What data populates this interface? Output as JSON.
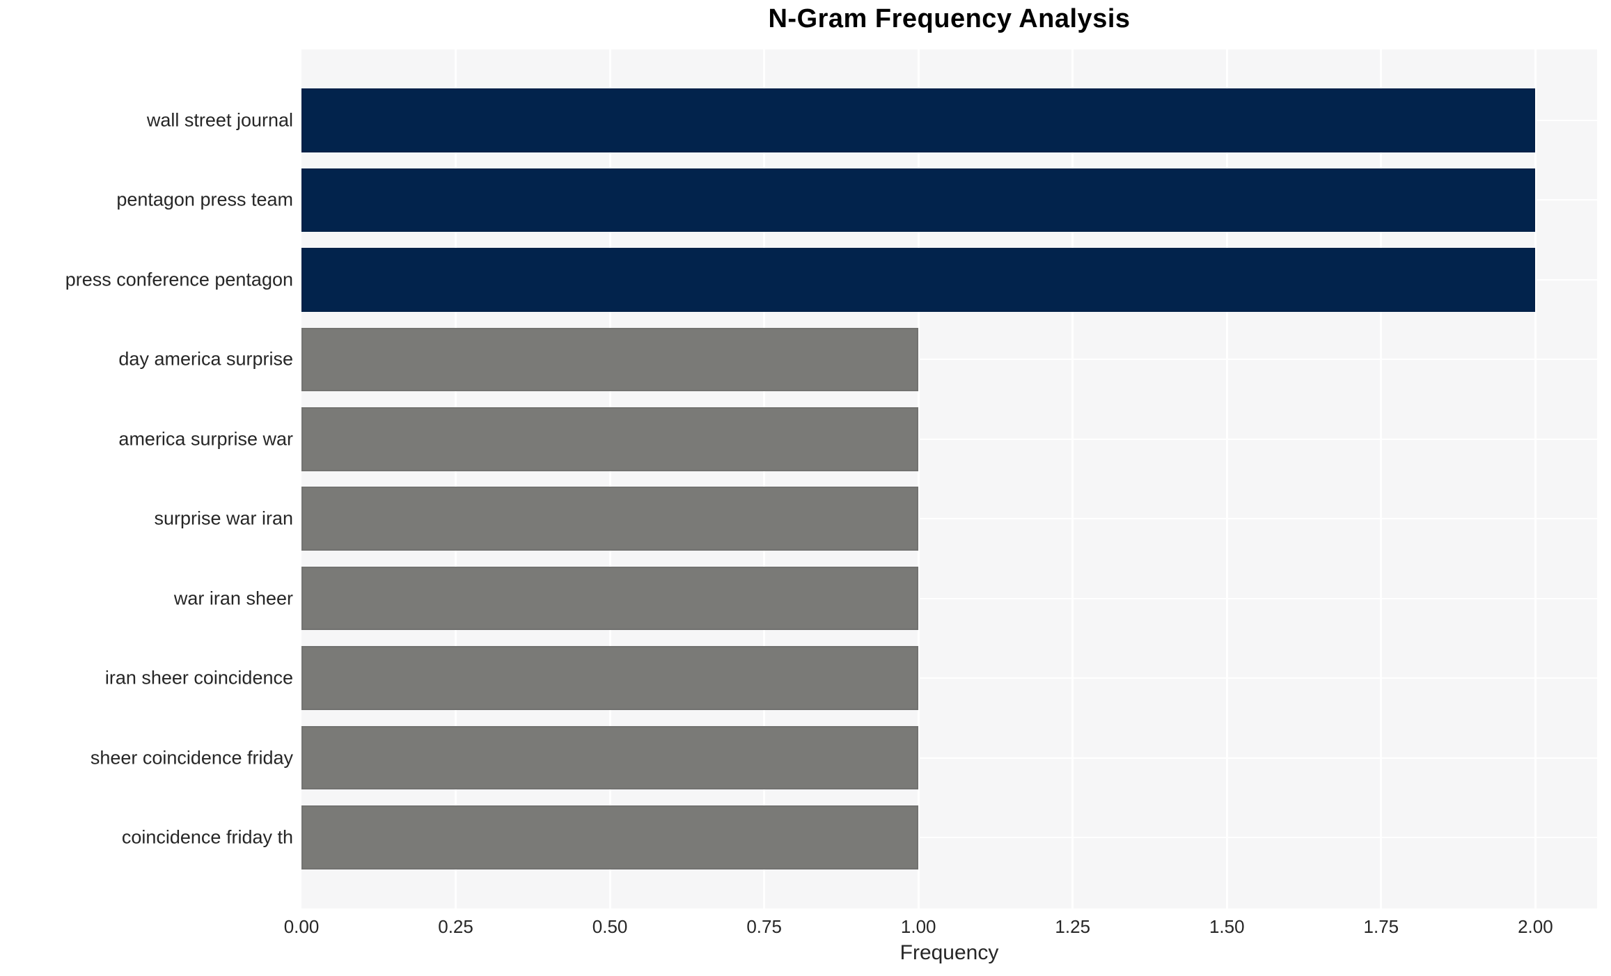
{
  "chart_data": {
    "type": "bar",
    "orientation": "horizontal",
    "title": "N-Gram Frequency Analysis",
    "xlabel": "Frequency",
    "ylabel": "",
    "categories": [
      "wall street journal",
      "pentagon press team",
      "press conference pentagon",
      "day america surprise",
      "america surprise war",
      "surprise war iran",
      "war iran sheer",
      "iran sheer coincidence",
      "sheer coincidence friday",
      "coincidence friday th"
    ],
    "values": [
      2,
      2,
      2,
      1,
      1,
      1,
      1,
      1,
      1,
      1
    ],
    "bar_colors": [
      "#02234c",
      "#02234c",
      "#02234c",
      "#7a7a77",
      "#7a7a77",
      "#7a7a77",
      "#7a7a77",
      "#7a7a77",
      "#7a7a77",
      "#7a7a77"
    ],
    "xlim": [
      0,
      2.1
    ],
    "xticks": [
      {
        "value": 0.0,
        "label": "0.00"
      },
      {
        "value": 0.25,
        "label": "0.25"
      },
      {
        "value": 0.5,
        "label": "0.50"
      },
      {
        "value": 0.75,
        "label": "0.75"
      },
      {
        "value": 1.0,
        "label": "1.00"
      },
      {
        "value": 1.25,
        "label": "1.25"
      },
      {
        "value": 1.5,
        "label": "1.50"
      },
      {
        "value": 1.75,
        "label": "1.75"
      },
      {
        "value": 2.0,
        "label": "2.00"
      }
    ],
    "grid": true,
    "legend_position": "none",
    "colors": {
      "highlight": "#02234c",
      "default": "#7a7a77",
      "plot_background": "#f6f6f7",
      "gridline": "#ffffff",
      "text": "#262626",
      "title_text": "#000000"
    }
  }
}
